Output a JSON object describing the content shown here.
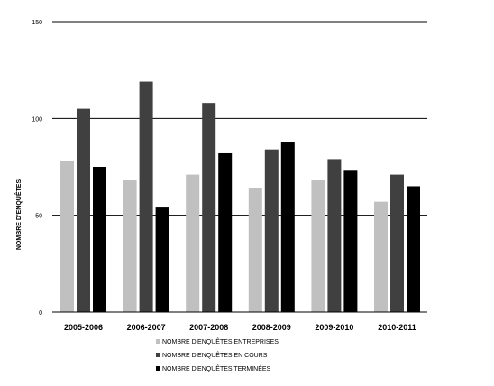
{
  "chart_data": {
    "type": "bar",
    "title": "",
    "xlabel": "",
    "ylabel": "NOMBRE D'ENQUÊTES",
    "ylim": [
      0,
      150
    ],
    "yticks": [
      0,
      50,
      100,
      150
    ],
    "grid": "horizontal",
    "legend_position": "bottom-center",
    "categories": [
      "2005-2006",
      "2006-2007",
      "2007-2008",
      "2008-2009",
      "2009-2010",
      "2010-2011"
    ],
    "series": [
      {
        "name": "NOMBRE D'ENQUÊTES ENTREPRISES",
        "color": "#c0c0c0",
        "values": [
          78,
          68,
          71,
          64,
          68,
          57
        ]
      },
      {
        "name": "NOMBRE D'ENQUÊTES EN COURS",
        "color": "#404040",
        "values": [
          105,
          119,
          108,
          84,
          79,
          71
        ]
      },
      {
        "name": "NOMBRE D'ENQUÊTES TERMINÉES",
        "color": "#000000",
        "values": [
          75,
          54,
          82,
          88,
          73,
          65
        ]
      }
    ]
  }
}
